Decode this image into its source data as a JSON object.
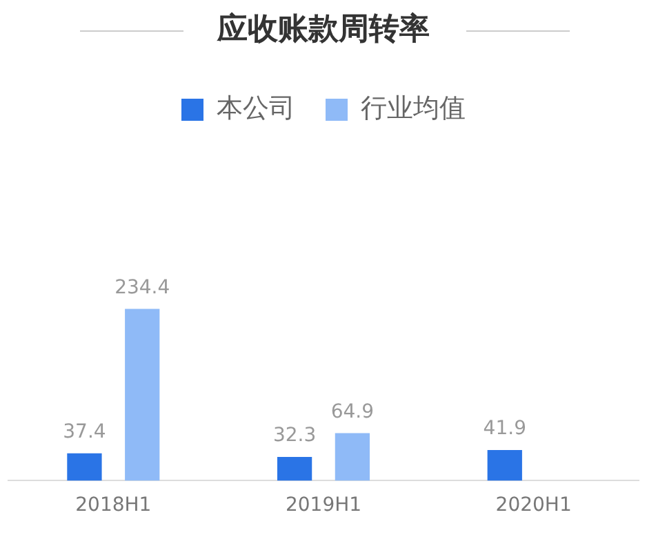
{
  "chart_data": {
    "type": "bar",
    "title": "应收账款周转率",
    "categories": [
      "2018H1",
      "2019H1",
      "2020H1"
    ],
    "series": [
      {
        "name": "本公司",
        "color": "#2a74e6",
        "values": [
          37.4,
          32.3,
          41.9
        ]
      },
      {
        "name": "行业均值",
        "color": "#8fbaf7",
        "values": [
          234.4,
          64.9,
          null
        ]
      }
    ],
    "data_labels": true,
    "legend": "top",
    "grid": false,
    "tick_labels": "x"
  }
}
